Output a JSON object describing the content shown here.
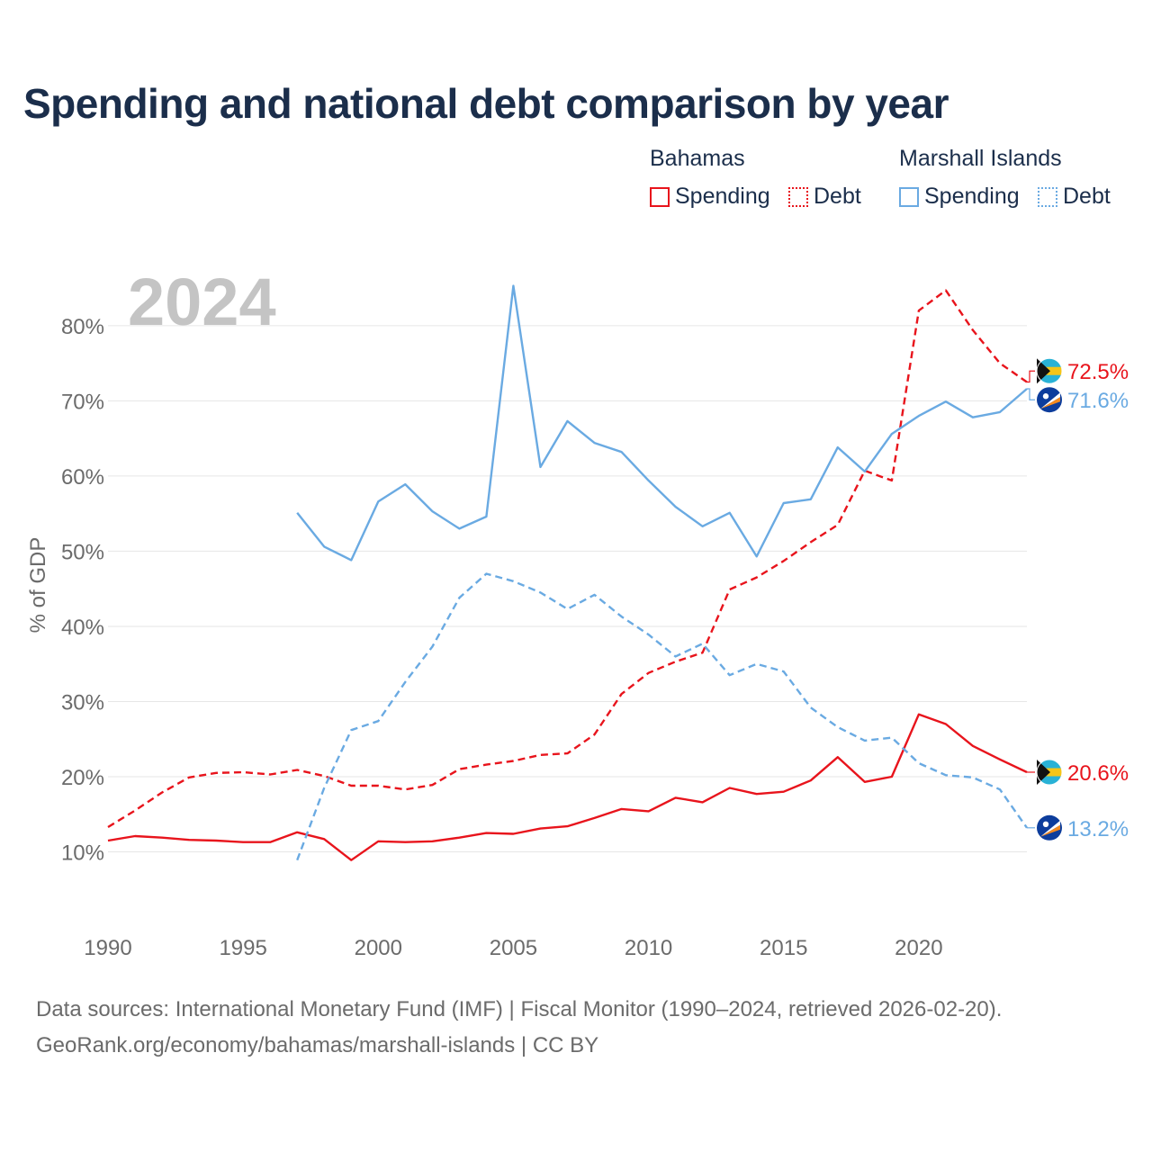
{
  "title": "Spending and national debt comparison by year",
  "legend": {
    "group1": "Bahamas",
    "group2": "Marshall Islands",
    "item1": "Spending",
    "item2": "Debt",
    "item3": "Spending",
    "item4": "Debt"
  },
  "footer": {
    "line1": "Data sources: International Monetary Fund (IMF) | Fiscal Monitor (1990–2024, retrieved 2026-02-20).",
    "line2": "GeoRank.org/economy/bahamas/marshall-islands | CC BY"
  },
  "colors": {
    "bahamas": "#e8141c",
    "marshall": "#6aaae2",
    "title": "#1b2e4b"
  },
  "chart_data": {
    "type": "line",
    "title": "Spending and national debt comparison by year",
    "year_label": "2024",
    "ylabel": "% of GDP",
    "xlabel": "",
    "xlim": [
      1990,
      2024
    ],
    "ylim": [
      3,
      88
    ],
    "yticks": [
      10,
      20,
      30,
      40,
      50,
      60,
      70,
      80
    ],
    "ytick_labels": [
      "10%",
      "20%",
      "30%",
      "40%",
      "50%",
      "60%",
      "70%",
      "80%"
    ],
    "xticks": [
      1990,
      1995,
      2000,
      2005,
      2010,
      2015,
      2020
    ],
    "xtick_labels": [
      "1990",
      "1995",
      "2000",
      "2005",
      "2010",
      "2015",
      "2020"
    ],
    "series": [
      {
        "name": "Bahamas Spending",
        "country": "Bahamas",
        "style": "solid",
        "color": "#e8141c",
        "start_year": 1990,
        "values": [
          11.5,
          12.1,
          11.9,
          11.6,
          11.5,
          11.3,
          11.3,
          12.6,
          11.7,
          8.9,
          11.4,
          11.3,
          11.4,
          11.9,
          12.5,
          12.4,
          13.1,
          13.4,
          14.5,
          15.7,
          15.4,
          17.2,
          16.6,
          18.5,
          17.7,
          18.0,
          19.5,
          22.6,
          19.3,
          20.0,
          28.3,
          27.0,
          24.1,
          22.3,
          20.6
        ],
        "end_label": "20.6%"
      },
      {
        "name": "Bahamas Debt",
        "country": "Bahamas",
        "style": "dashed",
        "color": "#e8141c",
        "start_year": 1990,
        "values": [
          13.3,
          15.5,
          17.9,
          19.9,
          20.5,
          20.6,
          20.3,
          20.9,
          20.1,
          18.8,
          18.8,
          18.3,
          18.9,
          21.0,
          21.6,
          22.1,
          22.9,
          23.1,
          25.6,
          31.0,
          33.8,
          35.3,
          36.5,
          44.9,
          46.5,
          48.7,
          51.2,
          53.5,
          60.7,
          59.4,
          82.0,
          84.7,
          79.4,
          75.0,
          72.5
        ],
        "end_label": "72.5%"
      },
      {
        "name": "Marshall Islands Spending",
        "country": "Marshall Islands",
        "style": "solid",
        "color": "#6aaae2",
        "start_year": 1997,
        "values": [
          55.1,
          50.6,
          48.8,
          56.6,
          58.9,
          55.3,
          53.0,
          54.6,
          85.3,
          61.2,
          67.3,
          64.4,
          63.2,
          59.4,
          55.9,
          53.3,
          55.1,
          49.3,
          56.4,
          56.9,
          63.8,
          60.6,
          65.6,
          68.0,
          69.9,
          67.8,
          68.5,
          71.6
        ],
        "end_label": "71.6%"
      },
      {
        "name": "Marshall Islands Debt",
        "country": "Marshall Islands",
        "style": "dashed",
        "color": "#6aaae2",
        "start_year": 1997,
        "values": [
          8.9,
          18.5,
          26.2,
          27.4,
          32.6,
          37.3,
          43.8,
          47.0,
          46.0,
          44.5,
          42.3,
          44.2,
          41.3,
          38.9,
          36.0,
          37.7,
          33.5,
          35.0,
          34.0,
          29.2,
          26.6,
          24.8,
          25.2,
          21.8,
          20.2,
          19.9,
          18.3,
          13.2
        ],
        "end_label": "13.2%"
      }
    ]
  }
}
